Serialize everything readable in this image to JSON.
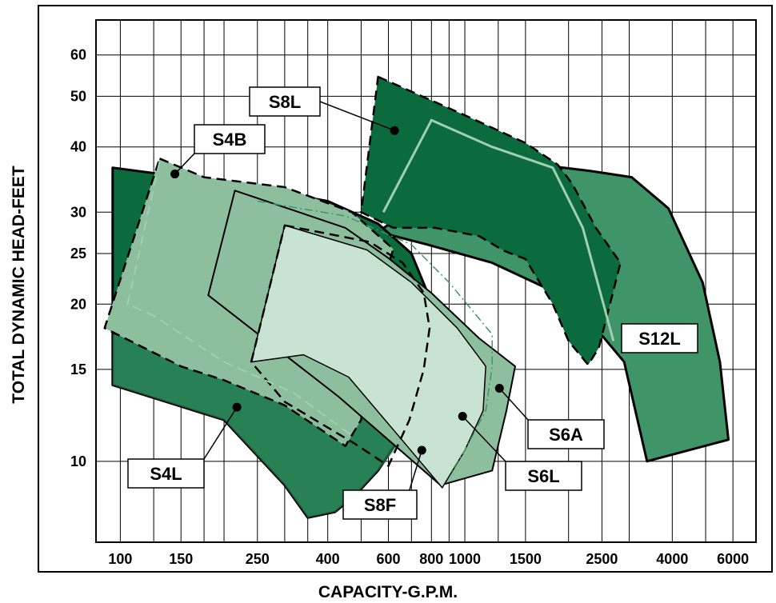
{
  "chart_data": {
    "type": "area",
    "title": "",
    "xlabel": "CAPACITY-G.P.M.",
    "ylabel": "TOTAL DYNAMIC HEAD-FEET",
    "x_scale": "log",
    "y_scale": "log",
    "xlim": [
      85,
      7000
    ],
    "ylim": [
      7,
      70
    ],
    "x_ticks": [
      100,
      150,
      250,
      400,
      600,
      800,
      1000,
      1500,
      2500,
      4000,
      6000
    ],
    "x_tick_labels": [
      "100",
      "150",
      "250",
      "400",
      "600",
      "800",
      "1000",
      "1500",
      "2500",
      "4000",
      "6000"
    ],
    "y_ticks": [
      10,
      15,
      20,
      25,
      30,
      40,
      50,
      60
    ],
    "y_tick_labels": [
      "10",
      "15",
      "20",
      "25",
      "30",
      "40",
      "50",
      "60"
    ],
    "grid": true,
    "colors": {
      "dark_green": "#0b6b3c",
      "mid_green": "#3f9468",
      "light_green": "#8dbf9e",
      "pale_green": "#c9e3d3",
      "line_light": "#9fd0b0"
    },
    "series": [
      {
        "name": "S12L",
        "boundary": [
          [
            940,
            35
          ],
          [
            1620,
            37
          ],
          [
            2300,
            36
          ],
          [
            3050,
            35
          ],
          [
            3900,
            30.5
          ],
          [
            4900,
            22
          ],
          [
            5500,
            15.5
          ],
          [
            5820,
            11
          ],
          [
            3380,
            10
          ],
          [
            2900,
            15.5
          ],
          [
            2400,
            18
          ],
          [
            1850,
            21
          ],
          [
            1200,
            24
          ],
          [
            780,
            26
          ],
          [
            560,
            27.5
          ]
        ]
      },
      {
        "name": "S8L",
        "boundary": [
          [
            560,
            54.5
          ],
          [
            1000,
            46
          ],
          [
            1500,
            40.7
          ],
          [
            1860,
            37
          ],
          [
            2050,
            34
          ],
          [
            2400,
            28
          ],
          [
            2830,
            24
          ],
          [
            2450,
            16.5
          ],
          [
            2280,
            15.3
          ],
          [
            2000,
            17
          ],
          [
            1800,
            20
          ],
          [
            1500,
            24.4
          ],
          [
            1300,
            25.3
          ],
          [
            1100,
            27
          ],
          [
            820,
            28
          ],
          [
            620,
            28
          ],
          [
            500,
            30
          ]
        ]
      },
      {
        "name": "S6A",
        "boundary": [
          [
            215,
            33
          ],
          [
            330,
            30
          ],
          [
            450,
            28
          ],
          [
            600,
            24.5
          ],
          [
            800,
            21
          ],
          [
            1100,
            17.2
          ],
          [
            1400,
            15.2
          ],
          [
            1320,
            12.5
          ],
          [
            1200,
            9.6
          ],
          [
            850,
            9
          ],
          [
            430,
            13.3
          ],
          [
            180,
            20.8
          ]
        ]
      },
      {
        "name": "S6L",
        "boundary": [
          [
            300,
            28.3
          ],
          [
            520,
            25.4
          ],
          [
            700,
            22
          ],
          [
            950,
            18
          ],
          [
            1150,
            15.2
          ],
          [
            1130,
            12.5
          ],
          [
            1000,
            10.5
          ],
          [
            860,
            8.9
          ],
          [
            680,
            10.7
          ],
          [
            460,
            14.5
          ],
          [
            340,
            16
          ],
          [
            240,
            15.5
          ]
        ]
      },
      {
        "name": "S8F",
        "boundary": [
          [
            300,
            28.3
          ],
          [
            530,
            26.3
          ],
          [
            660,
            24
          ],
          [
            760,
            21
          ],
          [
            790,
            18
          ],
          [
            760,
            15
          ],
          [
            690,
            12
          ],
          [
            600,
            9.8
          ],
          [
            480,
            10.8
          ],
          [
            300,
            13
          ],
          [
            240,
            15.5
          ]
        ]
      },
      {
        "name": "S4L",
        "boundary": [
          [
            95,
            36.5
          ],
          [
            200,
            34.2
          ],
          [
            400,
            31.5
          ],
          [
            560,
            28.5
          ],
          [
            700,
            25
          ],
          [
            780,
            21
          ],
          [
            800,
            18
          ],
          [
            760,
            15
          ],
          [
            700,
            12
          ],
          [
            560,
            9.6
          ],
          [
            480,
            8.6
          ],
          [
            420,
            8
          ],
          [
            350,
            7.8
          ],
          [
            300,
            9
          ],
          [
            200,
            12
          ],
          [
            95,
            14
          ]
        ]
      },
      {
        "name": "S4B",
        "boundary": [
          [
            130,
            38
          ],
          [
            175,
            35
          ],
          [
            300,
            33.5
          ],
          [
            470,
            30
          ],
          [
            620,
            25.5
          ],
          [
            540,
            19
          ],
          [
            500,
            12
          ],
          [
            450,
            10.7
          ],
          [
            300,
            12.8
          ],
          [
            200,
            14.3
          ],
          [
            150,
            15.2
          ],
          [
            90,
            18
          ]
        ]
      }
    ],
    "annotations": [
      {
        "label": "S8L",
        "point": [
          625,
          43
        ]
      },
      {
        "label": "S4B",
        "point": [
          144,
          35.5
        ]
      },
      {
        "label": "S4L",
        "point": [
          218,
          12.7
        ]
      },
      {
        "label": "S8F",
        "point": [
          750,
          10.5
        ]
      },
      {
        "label": "S6L",
        "point": [
          985,
          12.2
        ]
      },
      {
        "label": "S6A",
        "point": [
          1260,
          13.8
        ]
      },
      {
        "label": "S12L",
        "point": [
          3200,
          17
        ]
      }
    ]
  }
}
